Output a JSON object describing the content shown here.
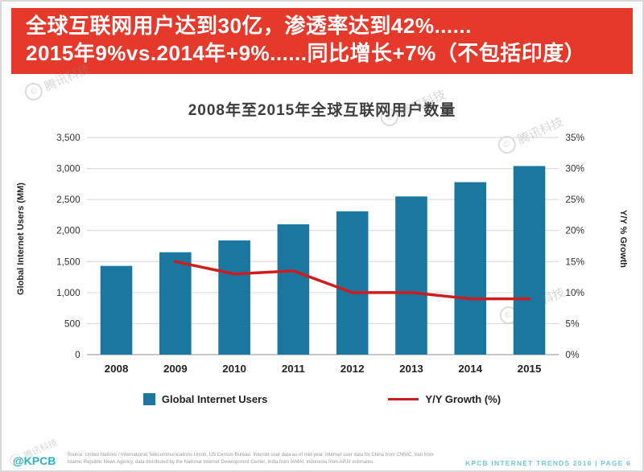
{
  "colors": {
    "banner_red": "#e5392b",
    "bar_blue": "#1b76a0",
    "line_red": "#cf1d1d",
    "footer_teal": "#2bb1c4"
  },
  "banner": {
    "line1": "全球互联网用户达到30亿，渗透率达到42%......",
    "line2": "2015年9%vs.2014年+9%......同比增长+7%（不包括印度）"
  },
  "watermark": {
    "text": "腾讯科技",
    "symbol": "©"
  },
  "chart_data": {
    "type": "bar",
    "title": "2008年至2015年全球互联网用户数量",
    "categories": [
      "2008",
      "2009",
      "2010",
      "2011",
      "2012",
      "2013",
      "2014",
      "2015"
    ],
    "series": [
      {
        "name": "Global Internet Users",
        "type": "bar",
        "axis": "left",
        "values": [
          1430,
          1650,
          1840,
          2100,
          2310,
          2550,
          2780,
          3040
        ],
        "color": "#1b76a0"
      },
      {
        "name": "Y/Y Growth (%)",
        "type": "line",
        "axis": "right",
        "values": [
          null,
          15,
          13,
          13.5,
          10,
          10,
          9,
          9
        ],
        "color": "#cf1d1d"
      }
    ],
    "left_axis": {
      "label": "Global Internet Users (MM)",
      "min": 0,
      "max": 3500,
      "step": 500,
      "tick_labels": [
        "0",
        "500",
        "1,000",
        "1,500",
        "2,000",
        "2,500",
        "3,000",
        "3,500"
      ]
    },
    "right_axis": {
      "label": "Y/Y % Growth",
      "min": 0,
      "max": 35,
      "step": 5,
      "tick_labels": [
        "0%",
        "5%",
        "10%",
        "15%",
        "20%",
        "25%",
        "30%",
        "35%"
      ]
    },
    "grid": true,
    "legend_position": "bottom",
    "legend": [
      {
        "label": "Global Internet Users",
        "swatch": "square",
        "color": "#1b76a0"
      },
      {
        "label": "Y/Y Growth (%)",
        "swatch": "line",
        "color": "#cf1d1d"
      }
    ]
  },
  "footer": {
    "brand": "@KPCB",
    "source": "Source: United Nations / International Telecommunications Union, US Census Bureau. Internet user data as of mid-year. Internet user data for China from CNNIC, Iran from Islamic Republic News Agency, data distributed by the National Internet Development Center, India from IAMAI, Indonesia from APJII estimates.",
    "right": "KPCB INTERNET TRENDS 2016 | PAGE 6"
  }
}
